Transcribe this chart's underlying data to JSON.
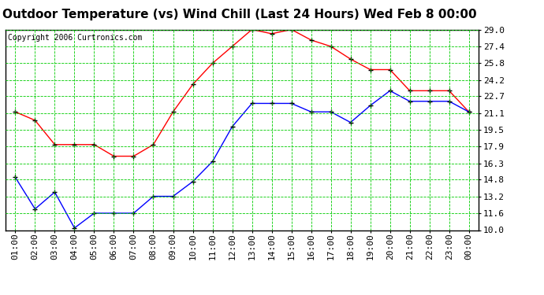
{
  "title": "Outdoor Temperature (vs) Wind Chill (Last 24 Hours) Wed Feb 8 00:00",
  "copyright": "Copyright 2006 Curtronics.com",
  "x_labels": [
    "01:00",
    "02:00",
    "03:00",
    "04:00",
    "05:00",
    "06:00",
    "07:00",
    "08:00",
    "09:00",
    "10:00",
    "11:00",
    "12:00",
    "13:00",
    "14:00",
    "15:00",
    "16:00",
    "17:00",
    "18:00",
    "19:00",
    "20:00",
    "21:00",
    "22:00",
    "23:00",
    "00:00"
  ],
  "temp_red": [
    21.2,
    20.4,
    18.1,
    18.1,
    18.1,
    17.0,
    17.0,
    18.1,
    21.2,
    23.8,
    25.8,
    27.4,
    29.0,
    28.6,
    29.0,
    28.0,
    27.4,
    26.2,
    25.2,
    25.2,
    23.2,
    23.2,
    23.2,
    21.2
  ],
  "wind_blue": [
    15.0,
    12.0,
    13.6,
    10.2,
    11.6,
    11.6,
    11.6,
    13.2,
    13.2,
    14.6,
    16.5,
    19.8,
    22.0,
    22.0,
    22.0,
    21.2,
    21.2,
    20.2,
    21.8,
    23.2,
    22.2,
    22.2,
    22.2,
    21.2
  ],
  "ylim_min": 10.0,
  "ylim_max": 29.0,
  "yticks": [
    10.0,
    11.6,
    13.2,
    14.8,
    16.3,
    17.9,
    19.5,
    21.1,
    22.7,
    24.2,
    25.8,
    27.4,
    29.0
  ],
  "bg_color": "#ffffff",
  "grid_color": "#00cc00",
  "red_line_color": "#ff0000",
  "blue_line_color": "#0000ff",
  "marker_color": "#000000",
  "title_fontsize": 11,
  "copyright_fontsize": 7,
  "tick_fontsize": 8
}
